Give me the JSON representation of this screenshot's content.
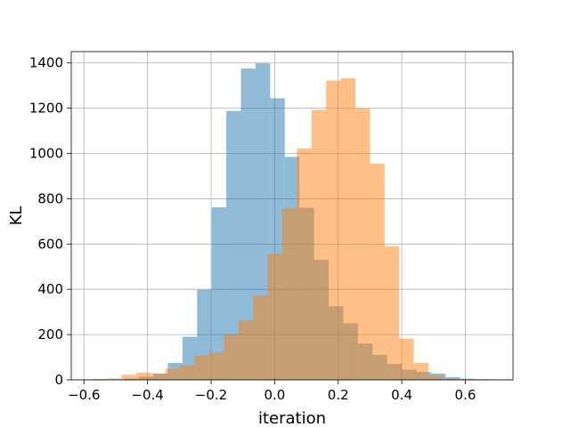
{
  "chart_data": {
    "type": "bar",
    "subtype": "histogram",
    "title": "",
    "xlabel": "iteration",
    "ylabel": "KL",
    "xlim": [
      -0.64,
      0.75
    ],
    "ylim": [
      0,
      1450
    ],
    "grid": true,
    "xticks": [
      -0.6,
      -0.4,
      -0.2,
      0.0,
      0.2,
      0.4,
      0.6
    ],
    "xtick_labels": [
      "−0.6",
      "−0.4",
      "−0.2",
      "0.0",
      "0.2",
      "0.4",
      "0.6"
    ],
    "yticks": [
      0,
      200,
      400,
      600,
      800,
      1000,
      1200,
      1400
    ],
    "ytick_labels": [
      "0",
      "200",
      "400",
      "600",
      "800",
      "1000",
      "1200",
      "1400"
    ],
    "series": [
      {
        "color": "#1f77b4",
        "opacity": 0.5,
        "bin_edges": [
          -0.474,
          -0.428,
          -0.382,
          -0.336,
          -0.29,
          -0.244,
          -0.198,
          -0.152,
          -0.106,
          -0.06,
          -0.014,
          0.032,
          0.078,
          0.124,
          0.17,
          0.216,
          0.262,
          0.308,
          0.354,
          0.4,
          0.446,
          0.492,
          0.538,
          0.584,
          0.63,
          0.676
        ],
        "values": [
          5,
          14,
          28,
          75,
          190,
          398,
          762,
          1188,
          1375,
          1398,
          1244,
          985,
          760,
          530,
          325,
          250,
          160,
          110,
          70,
          45,
          35,
          28,
          12,
          5,
          3
        ]
      },
      {
        "color": "#ff7f0e",
        "opacity": 0.5,
        "bin_edges": [
          -0.574,
          -0.528,
          -0.482,
          -0.436,
          -0.39,
          -0.344,
          -0.298,
          -0.252,
          -0.206,
          -0.16,
          -0.114,
          -0.068,
          -0.022,
          0.024,
          0.07,
          0.116,
          0.162,
          0.208,
          0.254,
          0.3,
          0.346,
          0.392,
          0.438,
          0.484,
          0.53,
          0.576
        ],
        "values": [
          4,
          6,
          22,
          32,
          28,
          50,
          65,
          108,
          120,
          200,
          262,
          372,
          558,
          758,
          1022,
          1192,
          1322,
          1332,
          1200,
          955,
          590,
          182,
          75,
          18,
          5
        ]
      }
    ]
  }
}
